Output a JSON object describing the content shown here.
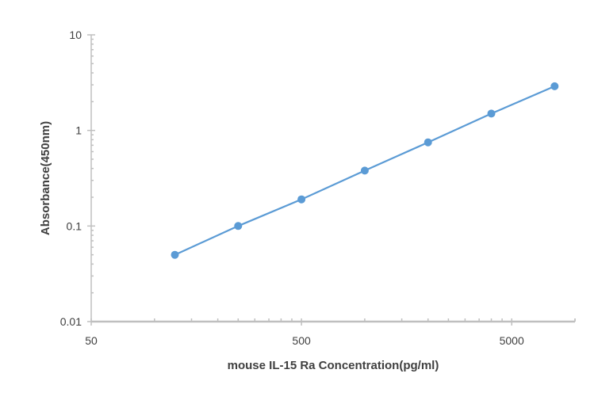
{
  "chart_data": {
    "type": "scatter",
    "title": "",
    "xlabel": "mouse IL-15 Ra Concentration(pg/ml)",
    "ylabel": "Absorbance(450nm)",
    "x_scale": "log",
    "y_scale": "log",
    "xlim": [
      50,
      10000
    ],
    "ylim": [
      0.01,
      10
    ],
    "x_tick_labels": [
      "50",
      "500",
      "5000"
    ],
    "x_tick_values": [
      50,
      500,
      5000
    ],
    "y_tick_labels": [
      "0.01",
      "0.1",
      "1",
      "10"
    ],
    "y_tick_values": [
      0.01,
      0.1,
      1,
      10
    ],
    "grid": false,
    "legend": "none",
    "series": [
      {
        "x": [
          125,
          250,
          500,
          1000,
          2000,
          4000,
          8000
        ],
        "y": [
          0.05,
          0.1,
          0.19,
          0.38,
          0.75,
          1.5,
          2.9
        ],
        "trendline": true
      }
    ],
    "colors": {
      "series": "#5b9bd5",
      "axis": "#bfbfbf",
      "text": "#404040"
    }
  }
}
